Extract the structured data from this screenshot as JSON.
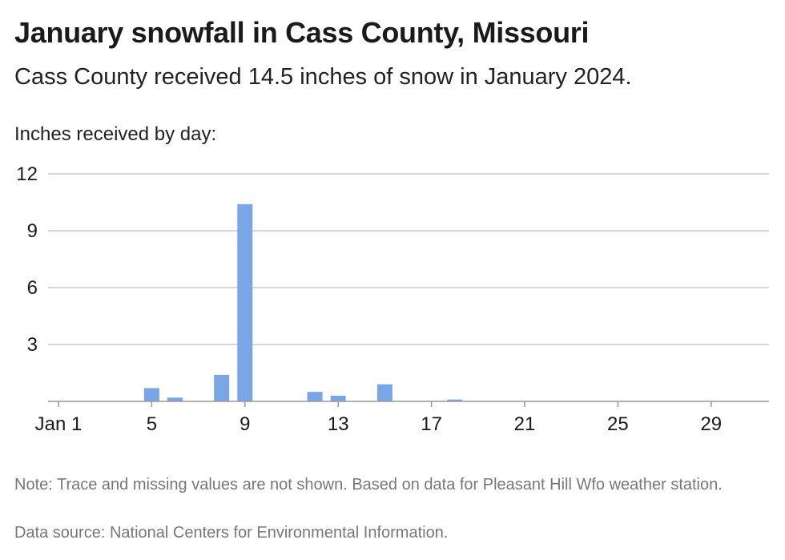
{
  "title": "January snowfall in Cass County, Missouri",
  "subtitle": "Cass County received 14.5 inches of snow in January 2024.",
  "note": "Note: Trace and missing values are not shown. Based on data for Pleasant Hill Wfo weather station.",
  "source": "Data source: National Centers for Environmental Information.",
  "chart_data": {
    "type": "bar",
    "ylabel": "Inches received by day:",
    "ylim": [
      0,
      12
    ],
    "y_ticks": [
      3,
      6,
      9,
      12
    ],
    "x_ticks": [
      {
        "day": 1,
        "label": "Jan 1"
      },
      {
        "day": 5,
        "label": "5"
      },
      {
        "day": 9,
        "label": "9"
      },
      {
        "day": 13,
        "label": "13"
      },
      {
        "day": 17,
        "label": "17"
      },
      {
        "day": 21,
        "label": "21"
      },
      {
        "day": 25,
        "label": "25"
      },
      {
        "day": 29,
        "label": "29"
      }
    ],
    "days": [
      5,
      6,
      8,
      9,
      12,
      13,
      15,
      18
    ],
    "values": [
      0.7,
      0.2,
      1.4,
      10.4,
      0.5,
      0.3,
      0.9,
      0.1
    ],
    "grid": true,
    "bar_color": "#7aa6e8"
  }
}
